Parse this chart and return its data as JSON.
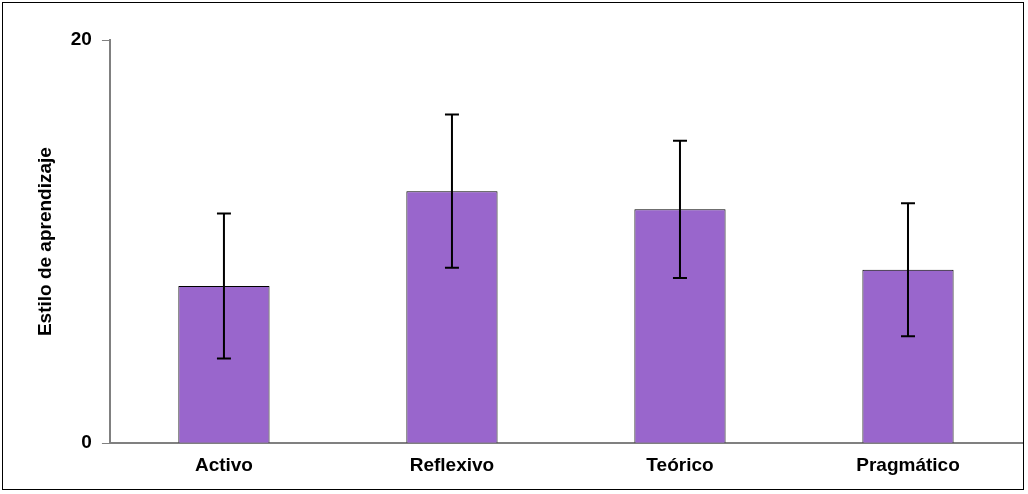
{
  "chart_data": {
    "type": "bar",
    "ylabel": "Estilo de aprendizaje",
    "categories": [
      "Activo",
      "Reflexivo",
      "Teórico",
      "Pragmático"
    ],
    "values": [
      7.8,
      12.5,
      11.6,
      8.6
    ],
    "errors": [
      3.6,
      3.8,
      3.4,
      3.3
    ],
    "color": "#9966cc",
    "ylim": [
      0,
      20
    ],
    "yticks": [
      0,
      20
    ],
    "grid": false,
    "legend": false
  }
}
